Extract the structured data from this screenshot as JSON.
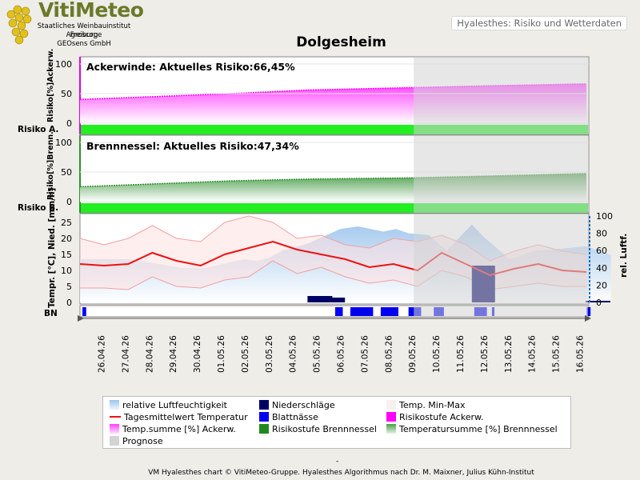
{
  "header": {
    "logo_title": "VitiMeteo",
    "logo_lines": [
      "Staatliches Weinbauinstitut Freiburg",
      "Agroscope",
      "GEOsens GmbH"
    ],
    "tab_label": "Hyalesthes: Risiko und Wetterdaten"
  },
  "colors": {
    "ackerwinde": "#ff00ff",
    "brennnessel": "#2f8f2f",
    "risk_bar": "#22ee22",
    "temperature": "#ee1111",
    "precipitation": "#000066",
    "leaf_wetness": "#0000ee",
    "humidity": "#a8cdee",
    "temp_band": "#ffe0e0",
    "forecast": "#d3d3d3"
  },
  "footer": {
    "dash": "-",
    "text": "VM Hyalesthes chart © VitiMeteo-Gruppe. Hyalesthes Algorithmus nach Dr. M. Maixner, Julius Kühn-Institut"
  },
  "chart_data": {
    "type": "line",
    "title": "Dolgesheim",
    "dates": [
      "26.04.26",
      "27.04.26",
      "28.04.26",
      "29.04.26",
      "30.04.26",
      "01.05.26",
      "02.05.26",
      "03.05.26",
      "04.05.26",
      "05.05.26",
      "06.05.26",
      "07.05.26",
      "08.05.26",
      "09.05.26",
      "10.05.26",
      "11.05.26",
      "12.05.26",
      "13.05.26",
      "14.05.26",
      "15.05.26",
      "16.05.26"
    ],
    "forecast_from": "09.05.26",
    "panels": [
      {
        "name": "Ackerwinde",
        "label": "Ackerwinde:  Aktuelles Risiko:66,45%",
        "ylabel": "Risiko[%]Ackerw.",
        "risk_label": "Risiko A.",
        "yticks": [
          "100",
          "50",
          "0"
        ],
        "ylim": [
          0,
          100
        ],
        "x": [
          "26.04.26",
          "29.04.26",
          "02.05.26",
          "05.05.26",
          "09.05.26",
          "12.05.26",
          "16.05.26"
        ],
        "values": [
          40,
          45,
          50,
          56,
          60,
          63,
          66.45
        ]
      },
      {
        "name": "Brennnessel",
        "label": "Brennnessel:  Aktuelles Risiko:47,34%",
        "ylabel": "Risiko[%]Brenn.",
        "risk_label": "Risiko B.",
        "yticks": [
          "100",
          "50",
          "0"
        ],
        "ylim": [
          0,
          100
        ],
        "x": [
          "26.04.26",
          "29.04.26",
          "02.05.26",
          "05.05.26",
          "09.05.26",
          "12.05.26",
          "16.05.26"
        ],
        "values": [
          25,
          30,
          35,
          38,
          40,
          43,
          47.34
        ]
      }
    ],
    "weather": {
      "ylabel_left": "Tempr. [°C], Nied. [mm/h]",
      "ylabel_right": "rel. Luftf.",
      "yticks_left": [
        "25",
        "20",
        "15",
        "10",
        "5",
        "0"
      ],
      "yticks_right": [
        "100",
        "80",
        "60",
        "40",
        "20",
        "0"
      ],
      "ylim_left": [
        0,
        27
      ],
      "ylim_right": [
        0,
        100
      ],
      "temp_mean": [
        12,
        11.5,
        12,
        15.5,
        13,
        11.5,
        15,
        17,
        19,
        16.5,
        15,
        13.5,
        11,
        12,
        10,
        15.5,
        12,
        8.5,
        10.5,
        12,
        10,
        9.5
      ],
      "temp_min": [
        4.5,
        4.5,
        4,
        8,
        5,
        4.5,
        7,
        8,
        13,
        9,
        11,
        8,
        6,
        7,
        5,
        10,
        8,
        4,
        5,
        6,
        5,
        5
      ],
      "temp_max": [
        20,
        18,
        20,
        24,
        20,
        19,
        25,
        27,
        25,
        20,
        21,
        18,
        17,
        20,
        19,
        21,
        18,
        13,
        16,
        18,
        16,
        15
      ],
      "humidity_x": [
        0,
        2,
        3,
        4,
        5,
        6.5,
        7,
        7.5,
        8,
        9,
        10.3,
        11,
        12,
        12.5,
        13,
        13.8,
        14.5,
        15,
        15.5,
        16,
        17,
        18,
        19,
        20,
        21
      ],
      "humidity": [
        50,
        50,
        45,
        40,
        40,
        50,
        48,
        52,
        60,
        68,
        85,
        88,
        82,
        85,
        80,
        78,
        60,
        75,
        90,
        75,
        50,
        60,
        62,
        65,
        55
      ],
      "precip_x": [
        9.0,
        9.5,
        15.5,
        20.0
      ],
      "precip": [
        2,
        1.5,
        11.5,
        0.5
      ],
      "leaf_wetness_symbol": "BN",
      "leaf_wetness_periods": [
        [
          0.0,
          0.15
        ],
        [
          10.0,
          10.3
        ],
        [
          10.6,
          11.5
        ],
        [
          11.8,
          12.5
        ],
        [
          12.9,
          13.4
        ],
        [
          13.9,
          14.3
        ],
        [
          15.5,
          16.0
        ],
        [
          16.2,
          16.3
        ],
        [
          19.95,
          20.1
        ]
      ]
    },
    "legend": [
      {
        "label": "relative Luftfeuchtigkeit",
        "kind": "humidity"
      },
      {
        "label": "Niederschläge",
        "kind": "precipitation"
      },
      {
        "label": "Temp. Min-Max",
        "kind": "tempband"
      },
      {
        "label": "Tagesmittelwert Temperatur",
        "kind": "templine"
      },
      {
        "label": "Blattnässe",
        "kind": "leafwetness"
      },
      {
        "label": "Risikostufe Ackerw.",
        "kind": "riskA"
      },
      {
        "label": "Temp.summe [%] Ackerw.",
        "kind": "cumA"
      },
      {
        "label": "Risikostufe Brennnessel",
        "kind": "riskB"
      },
      {
        "label": "Temperatursumme [%] Brennnessel",
        "kind": "cumB"
      },
      {
        "label": "Prognose",
        "kind": "forecast"
      }
    ]
  }
}
